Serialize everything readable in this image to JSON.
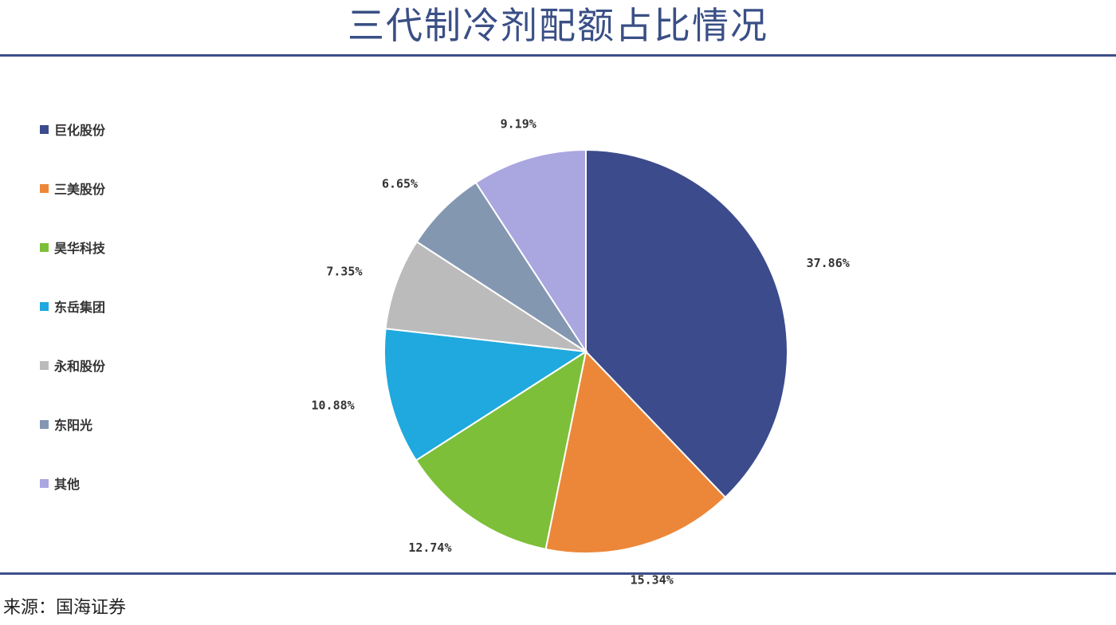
{
  "title": "三代制冷剂配额占比情况",
  "source": "来源：国海证券",
  "chart_data": {
    "type": "pie",
    "title": "三代制冷剂配额占比情况",
    "legend_position": "left",
    "start_angle": "12 o'clock, clockwise",
    "slices": [
      {
        "name": "巨化股份",
        "value": 37.86,
        "label": "37.86%",
        "color": "#3c4b8c"
      },
      {
        "name": "三美股份",
        "value": 15.34,
        "label": "15.34%",
        "color": "#ec8739"
      },
      {
        "name": "昊华科技",
        "value": 12.74,
        "label": "12.74%",
        "color": "#7dbf39"
      },
      {
        "name": "东岳集团",
        "value": 10.88,
        "label": "10.88%",
        "color": "#1fa9de"
      },
      {
        "name": "永和股份",
        "value": 7.35,
        "label": "7.35%",
        "color": "#bbbbbb"
      },
      {
        "name": "东阳光",
        "value": 6.65,
        "label": "6.65%",
        "color": "#8397b1"
      },
      {
        "name": "其他",
        "value": 9.19,
        "label": "9.19%",
        "color": "#aaa6e0"
      }
    ]
  }
}
